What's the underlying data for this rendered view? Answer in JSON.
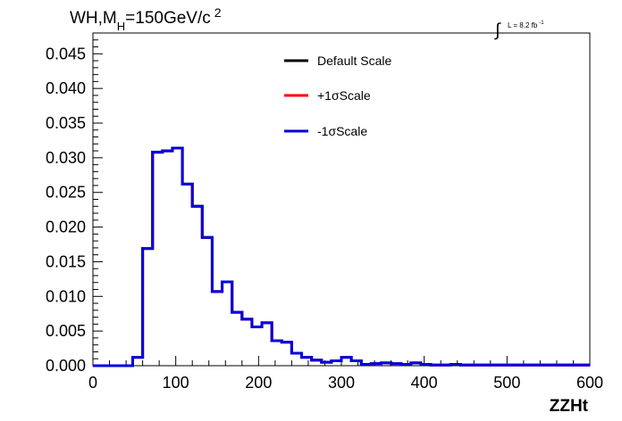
{
  "chart_data": {
    "type": "line",
    "title": {
      "main": "WH,M",
      "sub": "H",
      "rest": "=150GeV/c",
      "sup": "2"
    },
    "luminosity": {
      "label": "L = 8.2 fb",
      "sup": "-1"
    },
    "xlabel": "ZZHt",
    "ylabel": "",
    "xlim": [
      0,
      600
    ],
    "ylim": [
      0,
      0.048
    ],
    "x_ticks": [
      "0",
      "100",
      "200",
      "300",
      "400",
      "500",
      "600"
    ],
    "y_ticks": [
      "0.000",
      "0.005",
      "0.010",
      "0.015",
      "0.020",
      "0.025",
      "0.030",
      "0.035",
      "0.040",
      "0.045"
    ],
    "grid": false,
    "legend_position": "top-center",
    "bin_width": 12,
    "series": [
      {
        "name": "Default Scale",
        "color": "#000000",
        "values": [
          0,
          0,
          0,
          0,
          0.0012,
          0.0169,
          0.0308,
          0.031,
          0.0314,
          0.0262,
          0.023,
          0.0185,
          0.0107,
          0.0121,
          0.0077,
          0.0067,
          0.0056,
          0.0062,
          0.0036,
          0.0034,
          0.0018,
          0.0012,
          0.0008,
          0.0005,
          0.0007,
          0.0012,
          0.0007,
          0.0002,
          0.0003,
          0.0004,
          0.0003,
          0.0002,
          0.0004,
          0.0002,
          0.0001,
          0.0001,
          0.0002,
          0.0001,
          0.0001,
          0.0001,
          0.0001,
          0.0001,
          0.0001,
          0.0001,
          0.0001,
          0.0001,
          0.0001,
          0.0001,
          0.0001,
          0.0001
        ]
      },
      {
        "name": "+1σScale",
        "color": "#ff0000",
        "values": [
          0,
          0,
          0,
          0,
          0.0012,
          0.0169,
          0.0308,
          0.031,
          0.0314,
          0.0262,
          0.023,
          0.0185,
          0.0107,
          0.0121,
          0.0077,
          0.0067,
          0.0056,
          0.0062,
          0.0036,
          0.0034,
          0.0018,
          0.0012,
          0.0008,
          0.0005,
          0.0007,
          0.0012,
          0.0007,
          0.0002,
          0.0003,
          0.0004,
          0.0003,
          0.0002,
          0.0004,
          0.0002,
          0.0001,
          0.0001,
          0.0002,
          0.0001,
          0.0001,
          0.0001,
          0.0001,
          0.0001,
          0.0001,
          0.0001,
          0.0001,
          0.0001,
          0.0001,
          0.0001,
          0.0001,
          0.0001
        ]
      },
      {
        "name": "-1σScale",
        "color": "#0000dd",
        "values": [
          0,
          0,
          0,
          0,
          0.0012,
          0.0169,
          0.0308,
          0.031,
          0.0314,
          0.0262,
          0.023,
          0.0185,
          0.0107,
          0.0121,
          0.0077,
          0.0067,
          0.0056,
          0.0062,
          0.0036,
          0.0034,
          0.0018,
          0.0012,
          0.0008,
          0.0005,
          0.0007,
          0.0012,
          0.0007,
          0.0002,
          0.0003,
          0.0004,
          0.0003,
          0.0002,
          0.0004,
          0.0002,
          0.0001,
          0.0001,
          0.0002,
          0.0001,
          0.0001,
          0.0001,
          0.0001,
          0.0001,
          0.0001,
          0.0001,
          0.0001,
          0.0001,
          0.0001,
          0.0001,
          0.0001,
          0.0001
        ]
      }
    ]
  }
}
